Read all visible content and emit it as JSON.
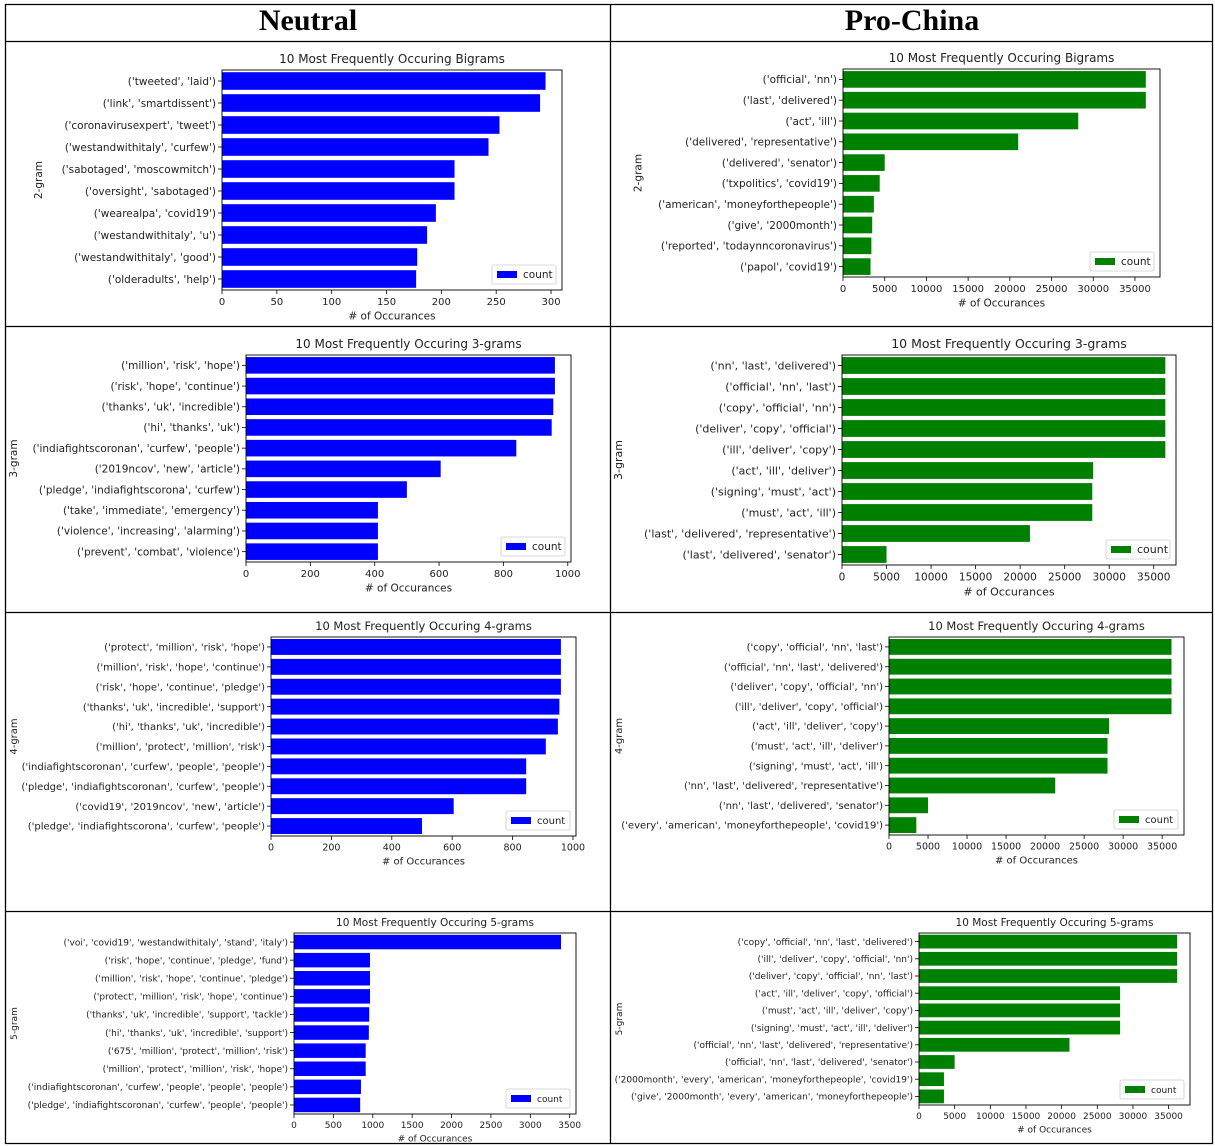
{
  "headers": {
    "left": "Neutral",
    "right": "Pro-China"
  },
  "colors": {
    "neutral": "#0000ff",
    "prochina": "#008000",
    "frame": "#000000"
  },
  "chart_data": [
    {
      "id": "neutral-bigrams",
      "type": "bar",
      "orientation": "horizontal",
      "title": "10 Most Frequently Occuring Bigrams",
      "xlabel": "# of Occurances",
      "ylabel": "2-gram",
      "legend": "count",
      "legend_position": "lower-right",
      "xlim": [
        0,
        310
      ],
      "xticks": [
        0,
        50,
        100,
        150,
        200,
        250,
        300
      ],
      "categories": [
        "('tweeted', 'laid')",
        "('link', 'smartdissent')",
        "('coronavirusexpert', 'tweet')",
        "('westandwithitaly', 'curfew')",
        "('sabotaged', 'moscowmitch')",
        "('oversight', 'sabotaged')",
        "('wearealpa', 'covid19')",
        "('westandwithitaly', 'u')",
        "('westandwithitaly', 'good')",
        "('olderadults', 'help')"
      ],
      "values": [
        295,
        290,
        253,
        243,
        212,
        212,
        195,
        187,
        178,
        177
      ],
      "color": "#0000ff"
    },
    {
      "id": "prochina-bigrams",
      "type": "bar",
      "orientation": "horizontal",
      "title": "10 Most Frequently Occuring Bigrams",
      "xlabel": "# of Occurances",
      "ylabel": "2-gram",
      "legend": "count",
      "legend_position": "lower-right",
      "xlim": [
        0,
        38000
      ],
      "xticks": [
        0,
        5000,
        10000,
        15000,
        20000,
        25000,
        30000,
        35000
      ],
      "categories": [
        "('official', 'nn')",
        "('last', 'delivered')",
        "('act', 'ill')",
        "('delivered', 'representative')",
        "('delivered', 'senator')",
        "('txpolitics', 'covid19')",
        "('american', 'moneyforthepeople')",
        "('give', '2000month')",
        "('reported', 'todaynncoronavirus')",
        "('papol', 'covid19')"
      ],
      "values": [
        36300,
        36300,
        28200,
        21000,
        5000,
        4400,
        3700,
        3500,
        3400,
        3300
      ],
      "color": "#008000"
    },
    {
      "id": "neutral-3grams",
      "type": "bar",
      "orientation": "horizontal",
      "title": "10 Most Frequently Occuring 3-grams",
      "xlabel": "# of Occurances",
      "ylabel": "3-gram",
      "legend": "count",
      "legend_position": "lower-right",
      "xlim": [
        0,
        1010
      ],
      "xticks": [
        0,
        200,
        400,
        600,
        800,
        1000
      ],
      "categories": [
        "('million', 'risk', 'hope')",
        "('risk', 'hope', 'continue')",
        "('thanks', 'uk', 'incredible')",
        "('hi', 'thanks', 'uk')",
        "('indiafightscoronan', 'curfew', 'people')",
        "('2019ncov', 'new', 'article')",
        "('pledge', 'indiafightscorona', 'curfew')",
        "('take', 'immediate', 'emergency')",
        "('violence', 'increasing', 'alarming')",
        "('prevent', 'combat', 'violence')"
      ],
      "values": [
        960,
        960,
        955,
        950,
        840,
        605,
        500,
        410,
        410,
        410
      ],
      "color": "#0000ff"
    },
    {
      "id": "prochina-3grams",
      "type": "bar",
      "orientation": "horizontal",
      "title": "10 Most Frequently Occuring 3-grams",
      "xlabel": "# of Occurances",
      "ylabel": "3-gram",
      "legend": "count",
      "legend_position": "lower-right",
      "xlim": [
        0,
        37500
      ],
      "xticks": [
        0,
        5000,
        10000,
        15000,
        20000,
        25000,
        30000,
        35000
      ],
      "categories": [
        "('nn', 'last', 'delivered')",
        "('official', 'nn', 'last')",
        "('copy', 'official', 'nn')",
        "('deliver', 'copy', 'official')",
        "('ill', 'deliver', 'copy')",
        "('act', 'ill', 'deliver')",
        "('signing', 'must', 'act')",
        "('must', 'act', 'ill')",
        "('last', 'delivered', 'representative')",
        "('last', 'delivered', 'senator')"
      ],
      "values": [
        36300,
        36300,
        36300,
        36300,
        36300,
        28200,
        28100,
        28100,
        21100,
        5000
      ],
      "color": "#008000"
    },
    {
      "id": "neutral-4grams",
      "type": "bar",
      "orientation": "horizontal",
      "title": "10 Most Frequently Occuring 4-grams",
      "xlabel": "# of Occurances",
      "ylabel": "4-gram",
      "legend": "count",
      "legend_position": "lower-right",
      "xlim": [
        0,
        1010
      ],
      "xticks": [
        0,
        200,
        400,
        600,
        800,
        1000
      ],
      "categories": [
        "('protect', 'million', 'risk', 'hope')",
        "('million', 'risk', 'hope', 'continue')",
        "('risk', 'hope', 'continue', 'pledge')",
        "('thanks', 'uk', 'incredible', 'support')",
        "('hi', 'thanks', 'uk', 'incredible')",
        "('million', 'protect', 'million', 'risk')",
        "('indiafightscoronan', 'curfew', 'people', 'people')",
        "('pledge', 'indiafightscoronan', 'curfew', 'people')",
        "('covid19', '2019ncov', 'new', 'article')",
        "('pledge', 'indiafightscorona', 'curfew', 'people')"
      ],
      "values": [
        960,
        960,
        960,
        955,
        950,
        910,
        845,
        845,
        605,
        500
      ],
      "color": "#0000ff"
    },
    {
      "id": "prochina-4grams",
      "type": "bar",
      "orientation": "horizontal",
      "title": "10 Most Frequently Occuring 4-grams",
      "xlabel": "# of Occurances",
      "ylabel": "4-gram",
      "legend": "count",
      "legend_position": "lower-right",
      "xlim": [
        0,
        37800
      ],
      "xticks": [
        0,
        5000,
        10000,
        15000,
        20000,
        25000,
        30000,
        35000
      ],
      "categories": [
        "('copy', 'official', 'nn', 'last')",
        "('official', 'nn', 'last', 'delivered')",
        "('deliver', 'copy', 'official', 'nn')",
        "('ill', 'deliver', 'copy', 'official')",
        "('act', 'ill', 'deliver', 'copy')",
        "('must', 'act', 'ill', 'deliver')",
        "('signing', 'must', 'act', 'ill')",
        "('nn', 'last', 'delivered', 'representative')",
        "('nn', 'last', 'delivered', 'senator')",
        "('every', 'american', 'moneyforthepeople', 'covid19')"
      ],
      "values": [
        36200,
        36200,
        36200,
        36200,
        28200,
        28000,
        28000,
        21300,
        5000,
        3500
      ],
      "color": "#008000"
    },
    {
      "id": "neutral-5grams",
      "type": "bar",
      "orientation": "horizontal",
      "title": "10 Most Frequently Occuring 5-grams",
      "xlabel": "# of Occurances",
      "ylabel": "5-gram",
      "legend": "count",
      "legend_position": "lower-right",
      "xlim": [
        0,
        3580
      ],
      "xticks": [
        0,
        500,
        1000,
        1500,
        2000,
        2500,
        3000,
        3500
      ],
      "categories": [
        "('voi', 'covid19', 'westandwithitaly', 'stand', 'italy')",
        "('risk', 'hope', 'continue', 'pledge', 'fund')",
        "('million', 'risk', 'hope', 'continue', 'pledge')",
        "('protect', 'million', 'risk', 'hope', 'continue')",
        "('thanks', 'uk', 'incredible', 'support', 'tackle')",
        "('hi', 'thanks', 'uk', 'incredible', 'support')",
        "('675', 'million', 'protect', 'million', 'risk')",
        "('million', 'protect', 'million', 'risk', 'hope')",
        "('indiafightscoronan', 'curfew', 'people', 'people', 'people')",
        "('pledge', 'indiafightscoronan', 'curfew', 'people', 'people')"
      ],
      "values": [
        3390,
        965,
        965,
        965,
        955,
        950,
        910,
        910,
        850,
        840
      ],
      "color": "#0000ff"
    },
    {
      "id": "prochina-5grams",
      "type": "bar",
      "orientation": "horizontal",
      "title": "10 Most Frequently Occuring 5-grams",
      "xlabel": "# of Occurances",
      "ylabel": "5-gram",
      "legend": "count",
      "legend_position": "lower-right",
      "xlim": [
        0,
        38000
      ],
      "xticks": [
        0,
        5000,
        10000,
        15000,
        20000,
        25000,
        30000,
        35000
      ],
      "categories": [
        "('copy', 'official', 'nn', 'last', 'delivered')",
        "('ill', 'deliver', 'copy', 'official', 'nn')",
        "('deliver', 'copy', 'official', 'nn', 'last')",
        "('act', 'ill', 'deliver', 'copy', 'official')",
        "('must', 'act', 'ill', 'deliver', 'copy')",
        "('signing', 'must', 'act', 'ill', 'deliver')",
        "('official', 'nn', 'last', 'delivered', 'representative')",
        "('official', 'nn', 'last', 'delivered', 'senator')",
        "('2000month', 'every', 'american', 'moneyforthepeople', 'covid19')",
        "('give', '2000month', 'every', 'american', 'moneyforthepeople')"
      ],
      "values": [
        36200,
        36200,
        36200,
        28200,
        28200,
        28200,
        21100,
        5000,
        3500,
        3500
      ],
      "color": "#008000"
    }
  ]
}
